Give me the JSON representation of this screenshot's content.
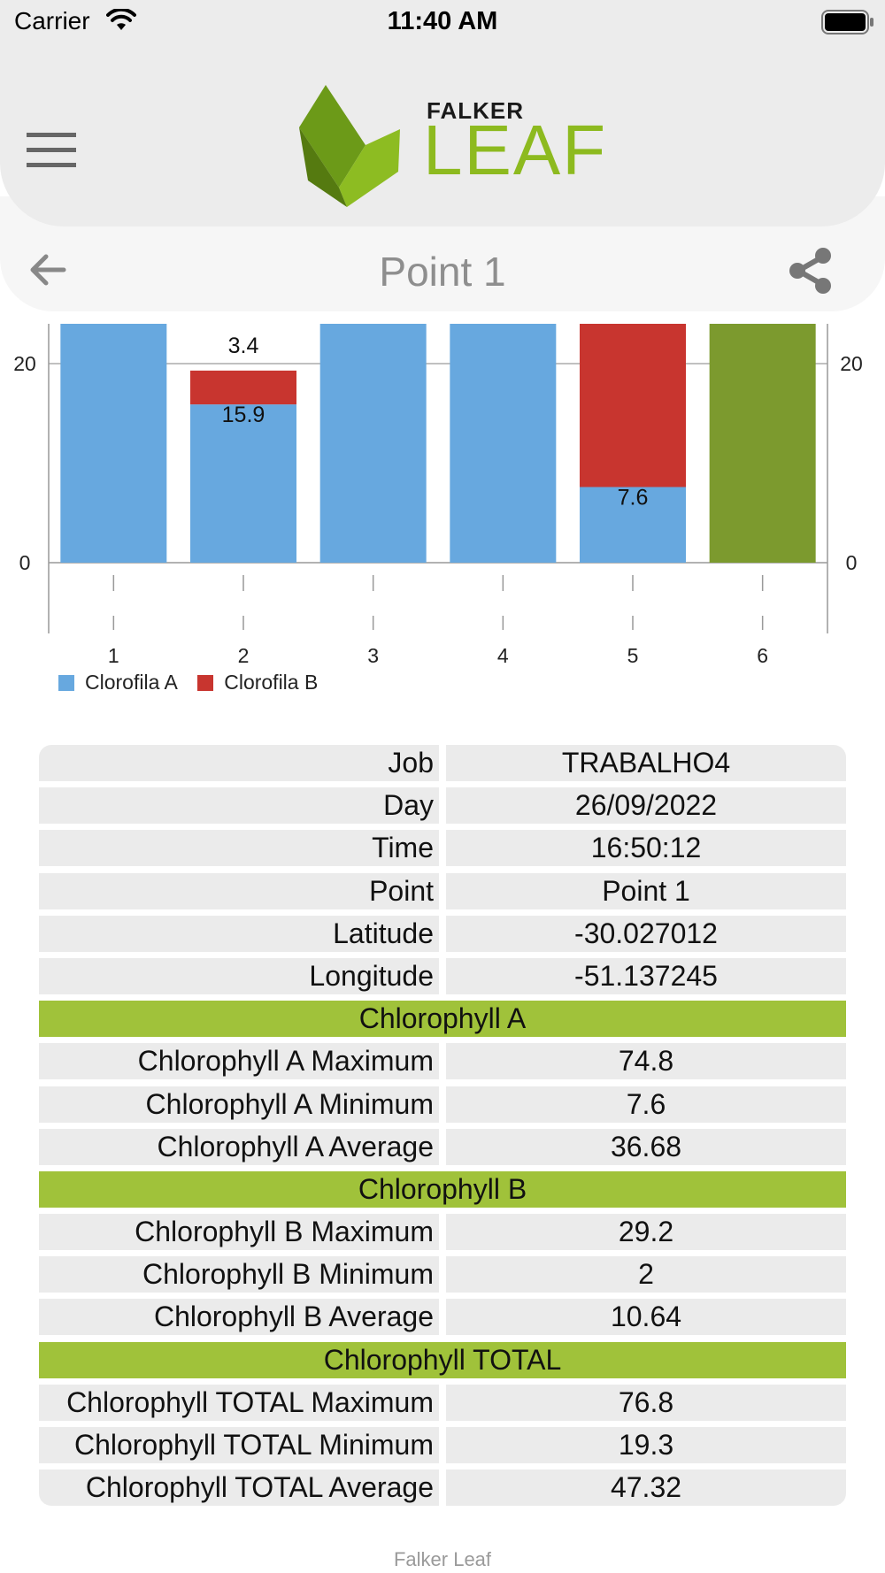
{
  "status_bar": {
    "carrier": "Carrier",
    "time": "11:40 AM"
  },
  "header": {
    "logo_brand": "FALKER",
    "logo_name": "LEAF"
  },
  "nav": {
    "title": "Point 1"
  },
  "colors": {
    "chlorophyll_a": "#67a8df",
    "chlorophyll_b": "#c8352f",
    "total": "#7c9a2e",
    "section": "#a0c23a"
  },
  "chart_data": {
    "type": "bar",
    "stacked": true,
    "categories": [
      "1",
      "2",
      "3",
      "4",
      "5",
      "6"
    ],
    "y_ticks": [
      0,
      20
    ],
    "ylim": [
      0,
      24
    ],
    "series": [
      {
        "name": "Clorofila A",
        "color": "#67a8df",
        "values": [
          24,
          15.9,
          24,
          24,
          7.6,
          0
        ],
        "labels": [
          "",
          "15.9",
          "",
          "",
          "7.6",
          ""
        ]
      },
      {
        "name": "Clorofila B",
        "color": "#c8352f",
        "values": [
          0,
          3.4,
          0,
          0,
          16.4,
          0
        ],
        "labels": [
          "",
          "3.4",
          "",
          "",
          "",
          ""
        ]
      },
      {
        "name": "",
        "color": "#7c9a2e",
        "values": [
          0,
          0,
          0,
          0,
          0,
          24
        ],
        "labels": [
          "",
          "",
          "",
          "",
          "",
          ""
        ]
      }
    ],
    "legend": [
      "Clorofila A",
      "Clorofila B"
    ]
  },
  "table": {
    "rows": [
      {
        "type": "row",
        "label": "Job",
        "value": "TRABALHO4"
      },
      {
        "type": "row",
        "label": "Day",
        "value": "26/09/2022"
      },
      {
        "type": "row",
        "label": "Time",
        "value": "16:50:12"
      },
      {
        "type": "row",
        "label": "Point",
        "value": "Point 1"
      },
      {
        "type": "row",
        "label": "Latitude",
        "value": "-30.027012"
      },
      {
        "type": "row",
        "label": "Longitude",
        "value": "-51.137245"
      },
      {
        "type": "section",
        "title": "Chlorophyll A"
      },
      {
        "type": "row",
        "label": "Chlorophyll A Maximum",
        "value": "74.8"
      },
      {
        "type": "row",
        "label": "Chlorophyll A Minimum",
        "value": "7.6"
      },
      {
        "type": "row",
        "label": "Chlorophyll A Average",
        "value": "36.68"
      },
      {
        "type": "section",
        "title": "Chlorophyll B"
      },
      {
        "type": "row",
        "label": "Chlorophyll B Maximum",
        "value": "29.2"
      },
      {
        "type": "row",
        "label": "Chlorophyll B Minimum",
        "value": "2"
      },
      {
        "type": "row",
        "label": "Chlorophyll B Average",
        "value": "10.64"
      },
      {
        "type": "section",
        "title": "Chlorophyll TOTAL"
      },
      {
        "type": "row",
        "label": "Chlorophyll TOTAL Maximum",
        "value": "76.8"
      },
      {
        "type": "row",
        "label": "Chlorophyll TOTAL Minimum",
        "value": "19.3"
      },
      {
        "type": "row",
        "label": "Chlorophyll TOTAL Average",
        "value": "47.32"
      }
    ]
  },
  "footer": {
    "text": "Falker Leaf"
  }
}
